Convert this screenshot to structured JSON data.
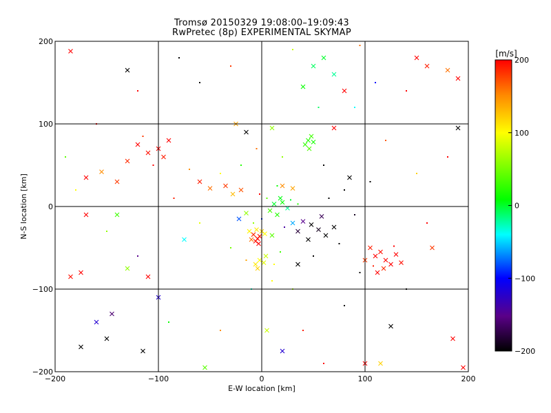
{
  "chart_data": {
    "type": "scatter",
    "title": "Tromsø 20150329 19:08:00–19:09:43",
    "subtitle": "RwPretec (8p) EXPERIMENTAL SKYMAP",
    "xlabel": "E-W location [km]",
    "ylabel": "N-S location [km]",
    "xlim": [
      -200,
      200
    ],
    "ylim": [
      -200,
      200
    ],
    "xticks": [
      -200,
      -100,
      0,
      100,
      200
    ],
    "yticks": [
      -200,
      -100,
      0,
      100,
      200
    ],
    "grid": true,
    "colorbar": {
      "label": "[m/s]",
      "range": [
        -200,
        200
      ],
      "ticks": [
        -200,
        -100,
        0,
        100,
        200
      ],
      "colormap": [
        "#000000",
        "#5a0088",
        "#0000ff",
        "#00ffff",
        "#00ff00",
        "#ffff00",
        "#ff8800",
        "#ff0000"
      ]
    },
    "marker_types": [
      "x",
      "dot"
    ],
    "series": [
      {
        "values": [
          {
            "x": -4,
            "y": -39,
            "v": 200,
            "m": "x"
          },
          {
            "x": -6,
            "y": -42,
            "v": 195,
            "m": "x"
          },
          {
            "x": -2,
            "y": -36,
            "v": 190,
            "m": "x"
          },
          {
            "x": -8,
            "y": -34,
            "v": 185,
            "m": "x"
          },
          {
            "x": -3,
            "y": -45,
            "v": 200,
            "m": "x"
          },
          {
            "x": -10,
            "y": -40,
            "v": 160,
            "m": "x"
          },
          {
            "x": 0,
            "y": -30,
            "v": 120,
            "m": "x"
          },
          {
            "x": -5,
            "y": -28,
            "v": 110,
            "m": "x"
          },
          {
            "x": 3,
            "y": -33,
            "v": 100,
            "m": "x"
          },
          {
            "x": -12,
            "y": -30,
            "v": 105,
            "m": "x"
          },
          {
            "x": -2,
            "y": -65,
            "v": 100,
            "m": "x"
          },
          {
            "x": -6,
            "y": -70,
            "v": 110,
            "m": "x"
          },
          {
            "x": 2,
            "y": -68,
            "v": 90,
            "m": "x"
          },
          {
            "x": -4,
            "y": -75,
            "v": 120,
            "m": "x"
          },
          {
            "x": 4,
            "y": -60,
            "v": 80,
            "m": "x"
          },
          {
            "x": 10,
            "y": -35,
            "v": 40,
            "m": "x"
          },
          {
            "x": 15,
            "y": -10,
            "v": 20,
            "m": "x"
          },
          {
            "x": 20,
            "y": 5,
            "v": 10,
            "m": "x"
          },
          {
            "x": 12,
            "y": 3,
            "v": 0,
            "m": "x"
          },
          {
            "x": 25,
            "y": -2,
            "v": -20,
            "m": "x"
          },
          {
            "x": 18,
            "y": 10,
            "v": 5,
            "m": "x"
          },
          {
            "x": 8,
            "y": -5,
            "v": 30,
            "m": "x"
          },
          {
            "x": 30,
            "y": -20,
            "v": -60,
            "m": "x"
          },
          {
            "x": 40,
            "y": -18,
            "v": -150,
            "m": "x"
          },
          {
            "x": 48,
            "y": -22,
            "v": -200,
            "m": "x"
          },
          {
            "x": 55,
            "y": -28,
            "v": -190,
            "m": "x"
          },
          {
            "x": 62,
            "y": -35,
            "v": -200,
            "m": "x"
          },
          {
            "x": 35,
            "y": -30,
            "v": -180,
            "m": "x"
          },
          {
            "x": 70,
            "y": -25,
            "v": -200,
            "m": "x"
          },
          {
            "x": 45,
            "y": -40,
            "v": -200,
            "m": "x"
          },
          {
            "x": 58,
            "y": -12,
            "v": -170,
            "m": "x"
          },
          {
            "x": 20,
            "y": 25,
            "v": 150,
            "m": "x"
          },
          {
            "x": 30,
            "y": 22,
            "v": 140,
            "m": "x"
          },
          {
            "x": -20,
            "y": 20,
            "v": 170,
            "m": "x"
          },
          {
            "x": -35,
            "y": 25,
            "v": 180,
            "m": "x"
          },
          {
            "x": -50,
            "y": 22,
            "v": 160,
            "m": "x"
          },
          {
            "x": -60,
            "y": 30,
            "v": 190,
            "m": "x"
          },
          {
            "x": -28,
            "y": 15,
            "v": 130,
            "m": "x"
          },
          {
            "x": -15,
            "y": -8,
            "v": 60,
            "m": "x"
          },
          {
            "x": -22,
            "y": -15,
            "v": -80,
            "m": "x"
          },
          {
            "x": 45,
            "y": 80,
            "v": 20,
            "m": "x"
          },
          {
            "x": 48,
            "y": 85,
            "v": 30,
            "m": "x"
          },
          {
            "x": 42,
            "y": 75,
            "v": 25,
            "m": "x"
          },
          {
            "x": 50,
            "y": 78,
            "v": 15,
            "m": "x"
          },
          {
            "x": 46,
            "y": 70,
            "v": 35,
            "m": "x"
          },
          {
            "x": 110,
            "y": -60,
            "v": 200,
            "m": "x"
          },
          {
            "x": 115,
            "y": -55,
            "v": 195,
            "m": "x"
          },
          {
            "x": 120,
            "y": -65,
            "v": 200,
            "m": "x"
          },
          {
            "x": 105,
            "y": -50,
            "v": 190,
            "m": "x"
          },
          {
            "x": 125,
            "y": -70,
            "v": 200,
            "m": "x"
          },
          {
            "x": 118,
            "y": -75,
            "v": 185,
            "m": "x"
          },
          {
            "x": 130,
            "y": -58,
            "v": 200,
            "m": "x"
          },
          {
            "x": 100,
            "y": -65,
            "v": 180,
            "m": "x"
          },
          {
            "x": 135,
            "y": -68,
            "v": 195,
            "m": "x"
          },
          {
            "x": 112,
            "y": -80,
            "v": 200,
            "m": "x"
          },
          {
            "x": -120,
            "y": 75,
            "v": 200,
            "m": "x"
          },
          {
            "x": -110,
            "y": 65,
            "v": 195,
            "m": "x"
          },
          {
            "x": -100,
            "y": 70,
            "v": 200,
            "m": "x"
          },
          {
            "x": -95,
            "y": 60,
            "v": 190,
            "m": "x"
          },
          {
            "x": -130,
            "y": 55,
            "v": 185,
            "m": "x"
          },
          {
            "x": -90,
            "y": 80,
            "v": 200,
            "m": "x"
          },
          {
            "x": -170,
            "y": 35,
            "v": 200,
            "m": "x"
          },
          {
            "x": -155,
            "y": 42,
            "v": 150,
            "m": "x"
          },
          {
            "x": -140,
            "y": 30,
            "v": 180,
            "m": "x"
          },
          {
            "x": 50,
            "y": 170,
            "v": -10,
            "m": "x"
          },
          {
            "x": 60,
            "y": 180,
            "v": 0,
            "m": "x"
          },
          {
            "x": 70,
            "y": 160,
            "v": -20,
            "m": "x"
          },
          {
            "x": 40,
            "y": 145,
            "v": 10,
            "m": "x"
          },
          {
            "x": 150,
            "y": 180,
            "v": 200,
            "m": "x"
          },
          {
            "x": 160,
            "y": 170,
            "v": 190,
            "m": "x"
          },
          {
            "x": 180,
            "y": 165,
            "v": 160,
            "m": "x"
          },
          {
            "x": 190,
            "y": 155,
            "v": 200,
            "m": "x"
          },
          {
            "x": -185,
            "y": 188,
            "v": 200,
            "m": "x"
          },
          {
            "x": -130,
            "y": 165,
            "v": -200,
            "m": "x"
          },
          {
            "x": -150,
            "y": -160,
            "v": -200,
            "m": "x"
          },
          {
            "x": -160,
            "y": -140,
            "v": -120,
            "m": "x"
          },
          {
            "x": -175,
            "y": -170,
            "v": -200,
            "m": "x"
          },
          {
            "x": -115,
            "y": -175,
            "v": -200,
            "m": "x"
          },
          {
            "x": -175,
            "y": -80,
            "v": 200,
            "m": "x"
          },
          {
            "x": -185,
            "y": -85,
            "v": 195,
            "m": "x"
          },
          {
            "x": -110,
            "y": -85,
            "v": 200,
            "m": "x"
          },
          {
            "x": -100,
            "y": -110,
            "v": -120,
            "m": "x"
          },
          {
            "x": 125,
            "y": -145,
            "v": -200,
            "m": "x"
          },
          {
            "x": 185,
            "y": -160,
            "v": 200,
            "m": "x"
          },
          {
            "x": 195,
            "y": -195,
            "v": 200,
            "m": "x"
          },
          {
            "x": 100,
            "y": -190,
            "v": 200,
            "m": "x"
          },
          {
            "x": 115,
            "y": -190,
            "v": 120,
            "m": "x"
          },
          {
            "x": -55,
            "y": -195,
            "v": 40,
            "m": "x"
          },
          {
            "x": 5,
            "y": -150,
            "v": 80,
            "m": "x"
          },
          {
            "x": 20,
            "y": -175,
            "v": -120,
            "m": "x"
          },
          {
            "x": -25,
            "y": 100,
            "v": 140,
            "m": "x"
          },
          {
            "x": -15,
            "y": 90,
            "v": -200,
            "m": "x"
          },
          {
            "x": 10,
            "y": 95,
            "v": 60,
            "m": "x"
          },
          {
            "x": 70,
            "y": 95,
            "v": 200,
            "m": "x"
          },
          {
            "x": 80,
            "y": 140,
            "v": 200,
            "m": "x"
          },
          {
            "x": 190,
            "y": 95,
            "v": -200,
            "m": "x"
          },
          {
            "x": 165,
            "y": -50,
            "v": 180,
            "m": "x"
          },
          {
            "x": -140,
            "y": -10,
            "v": 30,
            "m": "x"
          },
          {
            "x": -170,
            "y": -10,
            "v": 200,
            "m": "x"
          },
          {
            "x": -75,
            "y": -40,
            "v": -40,
            "m": "x"
          },
          {
            "x": 85,
            "y": 35,
            "v": -200,
            "m": "x"
          },
          {
            "x": 35,
            "y": -70,
            "v": -200,
            "m": "x"
          },
          {
            "x": -130,
            "y": -75,
            "v": 60,
            "m": "x"
          },
          {
            "x": -145,
            "y": -130,
            "v": -160,
            "m": "x"
          },
          {
            "x": -2,
            "y": 15,
            "v": 200,
            "m": "dot"
          },
          {
            "x": 5,
            "y": 10,
            "v": 40,
            "m": "dot"
          },
          {
            "x": 28,
            "y": 8,
            "v": 0,
            "m": "dot"
          },
          {
            "x": 35,
            "y": 3,
            "v": 20,
            "m": "dot"
          },
          {
            "x": 15,
            "y": 25,
            "v": 10,
            "m": "dot"
          },
          {
            "x": 22,
            "y": -25,
            "v": -140,
            "m": "dot"
          },
          {
            "x": 65,
            "y": 10,
            "v": -200,
            "m": "dot"
          },
          {
            "x": 80,
            "y": 20,
            "v": -200,
            "m": "dot"
          },
          {
            "x": 90,
            "y": -10,
            "v": -190,
            "m": "dot"
          },
          {
            "x": 75,
            "y": -45,
            "v": -200,
            "m": "dot"
          },
          {
            "x": -40,
            "y": 40,
            "v": 100,
            "m": "dot"
          },
          {
            "x": -70,
            "y": 45,
            "v": 150,
            "m": "dot"
          },
          {
            "x": -85,
            "y": 10,
            "v": 190,
            "m": "dot"
          },
          {
            "x": -60,
            "y": -20,
            "v": 90,
            "m": "dot"
          },
          {
            "x": -30,
            "y": -50,
            "v": 50,
            "m": "dot"
          },
          {
            "x": 10,
            "y": -90,
            "v": 100,
            "m": "dot"
          },
          {
            "x": 30,
            "y": -100,
            "v": 70,
            "m": "dot"
          },
          {
            "x": -10,
            "y": -100,
            "v": -30,
            "m": "dot"
          },
          {
            "x": 55,
            "y": 120,
            "v": -10,
            "m": "dot"
          },
          {
            "x": 90,
            "y": 120,
            "v": -40,
            "m": "dot"
          },
          {
            "x": 110,
            "y": 150,
            "v": -100,
            "m": "dot"
          },
          {
            "x": 140,
            "y": 140,
            "v": 200,
            "m": "dot"
          },
          {
            "x": 30,
            "y": 190,
            "v": 80,
            "m": "dot"
          },
          {
            "x": 95,
            "y": 195,
            "v": 160,
            "m": "dot"
          },
          {
            "x": -60,
            "y": 150,
            "v": -200,
            "m": "dot"
          },
          {
            "x": -80,
            "y": 180,
            "v": -200,
            "m": "dot"
          },
          {
            "x": -30,
            "y": 170,
            "v": 180,
            "m": "dot"
          },
          {
            "x": -120,
            "y": 140,
            "v": 200,
            "m": "dot"
          },
          {
            "x": -160,
            "y": 100,
            "v": 200,
            "m": "dot"
          },
          {
            "x": -190,
            "y": 60,
            "v": 40,
            "m": "dot"
          },
          {
            "x": -180,
            "y": 20,
            "v": 100,
            "m": "dot"
          },
          {
            "x": -150,
            "y": -30,
            "v": 60,
            "m": "dot"
          },
          {
            "x": -120,
            "y": -60,
            "v": -150,
            "m": "dot"
          },
          {
            "x": -90,
            "y": -140,
            "v": 10,
            "m": "dot"
          },
          {
            "x": -40,
            "y": -150,
            "v": 150,
            "m": "dot"
          },
          {
            "x": 40,
            "y": -150,
            "v": 190,
            "m": "dot"
          },
          {
            "x": 60,
            "y": -190,
            "v": 200,
            "m": "dot"
          },
          {
            "x": 80,
            "y": -120,
            "v": -200,
            "m": "dot"
          },
          {
            "x": 140,
            "y": -100,
            "v": -200,
            "m": "dot"
          },
          {
            "x": 160,
            "y": -20,
            "v": 200,
            "m": "dot"
          },
          {
            "x": 150,
            "y": 40,
            "v": 120,
            "m": "dot"
          },
          {
            "x": 180,
            "y": 60,
            "v": 200,
            "m": "dot"
          },
          {
            "x": 120,
            "y": 80,
            "v": 170,
            "m": "dot"
          },
          {
            "x": 105,
            "y": 30,
            "v": -200,
            "m": "dot"
          },
          {
            "x": 20,
            "y": 60,
            "v": 60,
            "m": "dot"
          },
          {
            "x": -5,
            "y": 70,
            "v": 160,
            "m": "dot"
          },
          {
            "x": -20,
            "y": 50,
            "v": 20,
            "m": "dot"
          },
          {
            "x": 60,
            "y": 50,
            "v": -200,
            "m": "dot"
          },
          {
            "x": 0,
            "y": -15,
            "v": -90,
            "m": "dot"
          },
          {
            "x": -8,
            "y": -20,
            "v": 60,
            "m": "dot"
          },
          {
            "x": 18,
            "y": -55,
            "v": 30,
            "m": "dot"
          },
          {
            "x": 12,
            "y": -70,
            "v": 100,
            "m": "dot"
          },
          {
            "x": -15,
            "y": -65,
            "v": 140,
            "m": "dot"
          },
          {
            "x": 50,
            "y": -60,
            "v": -200,
            "m": "dot"
          },
          {
            "x": 95,
            "y": -80,
            "v": -200,
            "m": "dot"
          },
          {
            "x": 128,
            "y": -48,
            "v": 200,
            "m": "dot"
          },
          {
            "x": 108,
            "y": -72,
            "v": 190,
            "m": "dot"
          },
          {
            "x": -105,
            "y": 50,
            "v": 200,
            "m": "dot"
          },
          {
            "x": -115,
            "y": 85,
            "v": 180,
            "m": "dot"
          }
        ]
      }
    ]
  }
}
